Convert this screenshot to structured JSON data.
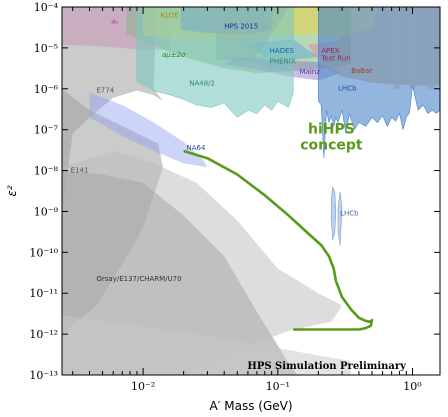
{
  "chart_data": {
    "type": "area",
    "title": "",
    "xlabel": "A′ Mass (GeV)",
    "ylabel": "ε²",
    "xscale": "log",
    "yscale": "log",
    "xlim": [
      0.0025,
      1.6
    ],
    "ylim": [
      1e-13,
      0.0001
    ],
    "x_ticks": [
      {
        "value": 0.01,
        "label": "10⁻²"
      },
      {
        "value": 0.1,
        "label": "10⁻¹"
      },
      {
        "value": 1,
        "label": "10⁰"
      }
    ],
    "y_ticks": [
      {
        "value": 1e-13,
        "label": "10⁻¹³"
      },
      {
        "value": 1e-12,
        "label": "10⁻¹²"
      },
      {
        "value": 1e-11,
        "label": "10⁻¹¹"
      },
      {
        "value": 1e-10,
        "label": "10⁻¹⁰"
      },
      {
        "value": 1e-09,
        "label": "10⁻⁹"
      },
      {
        "value": 1e-08,
        "label": "10⁻⁸"
      },
      {
        "value": 1e-07,
        "label": "10⁻⁷"
      },
      {
        "value": 1e-06,
        "label": "10⁻⁶"
      },
      {
        "value": 1e-05,
        "label": "10⁻⁵"
      },
      {
        "value": 0.0001,
        "label": "10⁻⁴"
      }
    ],
    "regions": [
      {
        "name": "a_e",
        "label": "aₑ",
        "color": "#f7a8d8",
        "opacity": 0.75,
        "label_pos": [
          0.0058,
          4e-05
        ],
        "label_color": "#cc3399",
        "points": [
          [
            0.0025,
            0.0001
          ],
          [
            0.0025,
            1.2e-05
          ],
          [
            0.005,
            1.1e-05
          ],
          [
            0.01,
            9e-06
          ],
          [
            0.016,
            9e-06
          ],
          [
            0.016,
            0.0001
          ]
        ]
      },
      {
        "name": "a_mu_pm2sigma",
        "label": "aμ±2σ",
        "color": "#8fc48f",
        "opacity": 0.65,
        "label_pos": [
          0.0138,
          6e-06
        ],
        "label_color": "#2e8b2e",
        "points": [
          [
            0.0075,
            0.0001
          ],
          [
            0.0075,
            2.2e-05
          ],
          [
            0.01,
            1.4e-05
          ],
          [
            0.02,
            6e-06
          ],
          [
            0.04,
            3.2e-06
          ],
          [
            0.07,
            2.4e-06
          ],
          [
            0.1,
            2.6e-06
          ],
          [
            0.2,
            3e-06
          ],
          [
            0.35,
            4e-06
          ],
          [
            0.35,
            0.0001
          ]
        ]
      },
      {
        "name": "E774",
        "label": "E774",
        "color": "#a0a0a0",
        "opacity": 0.55,
        "label_pos": [
          0.0045,
          8e-07
        ],
        "label_color": "#555555",
        "points": [
          [
            0.0025,
            0.0001
          ],
          [
            0.0025,
            1e-09
          ],
          [
            0.003,
            8e-08
          ],
          [
            0.004,
            2e-07
          ],
          [
            0.006,
            6e-07
          ],
          [
            0.009,
            9e-07
          ],
          [
            0.012,
            7e-07
          ],
          [
            0.014,
            5e-07
          ],
          [
            0.012,
            1e-06
          ],
          [
            0.0125,
            0.0001
          ]
        ]
      },
      {
        "name": "E141",
        "label": "E141",
        "color": "#a0a0a0",
        "opacity": 0.55,
        "label_pos": [
          0.0029,
          9e-09
        ],
        "label_color": "#555555",
        "points": [
          [
            0.0025,
            1e-06
          ],
          [
            0.004,
            3e-07
          ],
          [
            0.008,
            1e-07
          ],
          [
            0.013,
            4.5e-08
          ],
          [
            0.014,
            1.2e-08
          ],
          [
            0.01,
            4e-10
          ],
          [
            0.007,
            5e-11
          ],
          [
            0.0045,
            5e-12
          ],
          [
            0.0025,
            1e-12
          ]
        ]
      },
      {
        "name": "Orsay/E137/CHARM/U70",
        "label": "Orsay/E137/CHARM/U70",
        "color": "#8c8c8c",
        "opacity": 0.5,
        "label_pos": [
          0.0045,
          2e-11
        ],
        "label_color": "#333333",
        "points": [
          [
            0.0025,
            1e-08
          ],
          [
            0.005,
            8e-09
          ],
          [
            0.01,
            5e-09
          ],
          [
            0.02,
            8e-10
          ],
          [
            0.04,
            8e-11
          ],
          [
            0.07,
            3.5e-12
          ],
          [
            0.12,
            2e-13
          ],
          [
            0.14,
            1e-13
          ],
          [
            0.0025,
            1e-13
          ]
        ]
      },
      {
        "name": "outer-band",
        "label": "",
        "color": "#bcbcbc",
        "opacity": 0.5,
        "label_pos": null,
        "label_color": "",
        "points": [
          [
            0.0025,
            1.2e-08
          ],
          [
            0.006,
            3e-08
          ],
          [
            0.012,
            1.5e-08
          ],
          [
            0.025,
            5e-09
          ],
          [
            0.05,
            6e-10
          ],
          [
            0.1,
            4e-11
          ],
          [
            0.2,
            1e-11
          ],
          [
            0.3,
            5e-12
          ],
          [
            0.25,
            2e-12
          ],
          [
            0.12,
            1.2e-12
          ],
          [
            0.06,
            5e-13
          ],
          [
            0.03,
            2e-13
          ],
          [
            0.02,
            1e-13
          ],
          [
            0.0025,
            1e-13
          ]
        ]
      },
      {
        "name": "lower-band",
        "label": "",
        "color": "#c8c8c8",
        "opacity": 0.5,
        "label_pos": null,
        "label_color": "",
        "points": [
          [
            0.0025,
            3e-12
          ],
          [
            0.01,
            1.5e-12
          ],
          [
            0.05,
            7e-13
          ],
          [
            0.2,
            3e-13
          ],
          [
            0.35,
            2.2e-13
          ],
          [
            0.35,
            1e-13
          ],
          [
            0.0025,
            1e-13
          ]
        ]
      },
      {
        "name": "NA64",
        "label": "NA64",
        "color": "#8f9ff0",
        "opacity": 0.45,
        "label_pos": [
          0.021,
          3.2e-08
        ],
        "label_color": "#3344aa",
        "points": [
          [
            0.004,
            8e-07
          ],
          [
            0.007,
            4e-07
          ],
          [
            0.012,
            1.5e-07
          ],
          [
            0.02,
            5e-08
          ],
          [
            0.028,
            1.8e-08
          ],
          [
            0.03,
            1.2e-08
          ],
          [
            0.02,
            1.5e-08
          ],
          [
            0.012,
            3e-08
          ],
          [
            0.007,
            7e-08
          ],
          [
            0.004,
            2e-07
          ]
        ]
      },
      {
        "name": "KLOE",
        "label": "KLOE",
        "color": "#e3d35a",
        "opacity": 0.65,
        "label_pos": [
          0.0135,
          5.5e-05
        ],
        "label_color": "#9a8a10",
        "points": [
          [
            0.01,
            0.0001
          ],
          [
            0.01,
            2e-05
          ],
          [
            0.02,
            1.6e-05
          ],
          [
            0.05,
            1.8e-05
          ],
          [
            0.1,
            2.2e-05
          ],
          [
            0.3,
            2e-05
          ],
          [
            0.5,
            3e-05
          ],
          [
            0.55,
            0.0001
          ]
        ]
      },
      {
        "name": "HPS 2015",
        "label": "HPS 2015",
        "color": "#6f7fd6",
        "opacity": 0.55,
        "label_pos": [
          0.04,
          3e-05
        ],
        "label_color": "#1a2aa0",
        "points": [
          [
            0.019,
            0.0001
          ],
          [
            0.019,
            2.8e-05
          ],
          [
            0.03,
            2.3e-05
          ],
          [
            0.07,
            2.3e-05
          ],
          [
            0.09,
            2.8e-05
          ],
          [
            0.09,
            0.0001
          ]
        ]
      },
      {
        "name": "HADES",
        "label": "HADES",
        "color": "#5aa0e0",
        "opacity": 0.45,
        "label_pos": [
          0.087,
          7.6e-06
        ],
        "label_color": "#1f5fa5",
        "points": [
          [
            0.055,
            1.3e-05
          ],
          [
            0.08,
            6e-06
          ],
          [
            0.12,
            5e-06
          ],
          [
            0.2,
            6e-06
          ],
          [
            0.13,
            1.6e-05
          ]
        ]
      },
      {
        "name": "PHENIX",
        "label": "PHENIX",
        "color": "#7fbfb7",
        "opacity": 0.45,
        "label_pos": [
          0.087,
          4.2e-06
        ],
        "label_color": "#3a7a70",
        "points": [
          [
            0.06,
            7e-06
          ],
          [
            0.09,
            3e-06
          ],
          [
            0.12,
            2.6e-06
          ],
          [
            0.11,
            5e-06
          ]
        ]
      },
      {
        "name": "APEX Test Run",
        "label": "APEX\nTest Run",
        "color": "#e77aa6",
        "opacity": 0.45,
        "label_pos": [
          0.21,
          7.5e-06
        ],
        "label_color": "#a0205a",
        "points": [
          [
            0.165,
            1.2e-05
          ],
          [
            0.2,
            5e-06
          ],
          [
            0.3,
            6e-06
          ],
          [
            0.28,
            1.5e-05
          ]
        ]
      },
      {
        "name": "Mainz",
        "label": "Mainz",
        "color": "#8a6ec7",
        "opacity": 0.45,
        "label_pos": [
          0.145,
          2.3e-06
        ],
        "label_color": "#5a3a9a",
        "points": [
          [
            0.04,
            4e-06
          ],
          [
            0.07,
            3e-06
          ],
          [
            0.12,
            2e-06
          ],
          [
            0.2,
            1.6e-06
          ],
          [
            0.3,
            2.5e-06
          ],
          [
            0.2,
            4.5e-06
          ],
          [
            0.1,
            5e-06
          ],
          [
            0.05,
            6e-06
          ]
        ]
      },
      {
        "name": "BaBar",
        "label": "BaBar",
        "color": "#d9b07a",
        "opacity": 0.65,
        "label_pos": [
          0.35,
          2.4e-06
        ],
        "label_color": "#a0402a",
        "points": [
          [
            0.2,
            4e-06
          ],
          [
            0.3,
            2e-06
          ],
          [
            0.5,
            1.4e-06
          ],
          [
            1.0,
            1.2e-06
          ],
          [
            1.6,
            1.2e-06
          ],
          [
            1.6,
            0.0001
          ],
          [
            0.55,
            0.0001
          ],
          [
            0.5,
            3e-05
          ],
          [
            0.3,
            2e-05
          ]
        ]
      },
      {
        "name": "E141-top",
        "label": "",
        "color": "#9a9a9a",
        "opacity": 0.5,
        "label_pos": null,
        "label_color": "",
        "points": [
          [
            0.035,
            0.0001
          ],
          [
            0.035,
            5e-06
          ],
          [
            0.065,
            5e-06
          ],
          [
            0.08,
            1.2e-05
          ],
          [
            0.12,
            0.0001
          ]
        ]
      }
    ],
    "curve_regions": [
      {
        "name": "NA48/2",
        "label": "NA48/2",
        "color": "#7ec8c0",
        "opacity": 0.6,
        "label_pos": [
          0.022,
          1.2e-06
        ],
        "label_color": "#2a8a80",
        "x": [
          0.009,
          0.012,
          0.016,
          0.02,
          0.025,
          0.032,
          0.04,
          0.05,
          0.06,
          0.07,
          0.08,
          0.09,
          0.1,
          0.12,
          0.13
        ],
        "y": [
          1.5e-06,
          9e-07,
          7e-07,
          5.5e-07,
          4e-07,
          3.5e-07,
          4.5e-07,
          2e-07,
          3e-07,
          2.5e-07,
          4e-07,
          3e-07,
          5e-07,
          3.5e-07,
          8e-07
        ]
      },
      {
        "name": "LHCb",
        "label": "LHCb",
        "color": "#4a86c8",
        "opacity": 0.6,
        "label_pos": [
          0.28,
          9e-07
        ],
        "label_color": "#1a4a9a",
        "x": [
          0.2,
          0.21,
          0.22,
          0.23,
          0.24,
          0.25,
          0.26,
          0.27,
          0.28,
          0.3,
          0.32,
          0.34,
          0.37,
          0.4,
          0.45,
          0.5,
          0.55,
          0.6,
          0.65,
          0.7,
          0.75,
          0.8,
          0.85,
          0.9,
          0.95,
          1.0,
          1.1,
          1.2,
          1.3,
          1.4,
          1.5,
          1.6
        ],
        "y": [
          5e-07,
          4e-07,
          2e-08,
          3e-07,
          1.5e-07,
          2.2e-07,
          1.2e-07,
          2e-07,
          1.5e-07,
          3e-07,
          8e-08,
          2.5e-07,
          1e-07,
          1.5e-07,
          1.2e-07,
          2e-07,
          1.5e-07,
          2.2e-07,
          1.2e-07,
          2e-07,
          1.6e-07,
          2.5e-07,
          1e-07,
          2e-07,
          2.6e-07,
          1.2e-06,
          3e-07,
          4e-07,
          2.5e-07,
          3e-07,
          2.5e-07,
          3e-07
        ]
      }
    ],
    "islands": [
      {
        "name": "LHCb-displaced",
        "label": "LHCb",
        "color": "#8eb4e3",
        "opacity": 0.6,
        "label_pos": [
          0.29,
          8e-10
        ],
        "label_color": "#3a6aa5",
        "points": [
          [
            0.25,
            2e-09
          ],
          [
            0.255,
            4e-09
          ],
          [
            0.265,
            3e-09
          ],
          [
            0.27,
            1e-09
          ],
          [
            0.265,
            3e-10
          ],
          [
            0.255,
            2e-10
          ],
          [
            0.25,
            6e-10
          ]
        ]
      },
      {
        "name": "LHCb-displaced-b",
        "label": "",
        "color": "#8eb4e3",
        "opacity": 0.6,
        "label_pos": null,
        "label_color": "",
        "points": [
          [
            0.28,
            1.2e-09
          ],
          [
            0.29,
            3e-09
          ],
          [
            0.3,
            1.2e-09
          ],
          [
            0.29,
            1.5e-10
          ],
          [
            0.28,
            3e-10
          ]
        ]
      }
    ],
    "vertical_strips": [
      {
        "x": [
          0.73,
          0.8
        ],
        "y": [
          1e-06,
          0.0001
        ],
        "color": "#f2c9a8"
      },
      {
        "x": [
          0.95,
          1.05
        ],
        "y": [
          1e-06,
          0.0001
        ],
        "color": "#f2c9a8"
      },
      {
        "x": [
          1.3,
          1.45
        ],
        "y": [
          1e-06,
          0.0001
        ],
        "color": "#f2c9a8"
      }
    ],
    "series": [
      {
        "name": "hiHPS concept",
        "label": "hiHPS\nconcept",
        "color": "#5a9a1a",
        "x": [
          0.02,
          0.03,
          0.05,
          0.08,
          0.12,
          0.17,
          0.21,
          0.24,
          0.26,
          0.27,
          0.3,
          0.35,
          0.4,
          0.45,
          0.48,
          0.5,
          0.49,
          0.45,
          0.4,
          0.3,
          0.2,
          0.13
        ],
        "y": [
          3e-08,
          2e-08,
          8e-09,
          2.5e-09,
          8e-10,
          2.8e-10,
          1.5e-10,
          8e-11,
          4e-11,
          2e-11,
          8e-12,
          4e-12,
          2.5e-12,
          2.1e-12,
          2e-12,
          2.2e-12,
          1.6e-12,
          1.4e-12,
          1.3e-12,
          1.3e-12,
          1.3e-12,
          1.3e-12
        ],
        "label_pos": [
          0.25,
          8e-08
        ]
      }
    ],
    "annotation": "HPS Simulation Preliminary"
  }
}
